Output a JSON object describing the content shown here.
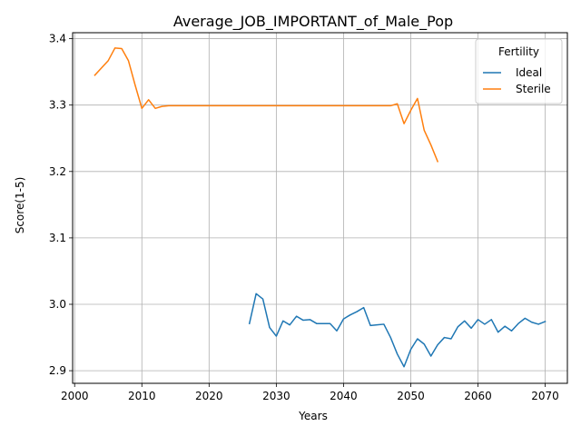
{
  "chart_data": {
    "type": "line",
    "title": "Average_JOB_IMPORTANT_of_Male_Pop",
    "xlabel": "Years",
    "ylabel": "Score(1-5)",
    "xlim": [
      1999.7,
      2073.3
    ],
    "ylim": [
      2.881,
      3.409
    ],
    "xticks": [
      2000,
      2010,
      2020,
      2030,
      2040,
      2050,
      2060,
      2070
    ],
    "yticks": [
      2.9,
      3.0,
      3.1,
      3.2,
      3.3,
      3.4
    ],
    "ytick_labels": [
      "2.9",
      "3.0",
      "3.1",
      "3.2",
      "3.3",
      "3.4"
    ],
    "grid": true,
    "legend": {
      "title": "Fertility",
      "placement": "top-right"
    },
    "series": [
      {
        "name": "Ideal",
        "color": "#1f77b4",
        "x": [
          2026,
          2027,
          2028,
          2029,
          2030,
          2031,
          2032,
          2033,
          2034,
          2035,
          2036,
          2037,
          2038,
          2039,
          2040,
          2041,
          2042,
          2043,
          2044,
          2045,
          2046,
          2047,
          2048,
          2049,
          2050,
          2051,
          2052,
          2053,
          2054,
          2055,
          2056,
          2057,
          2058,
          2059,
          2060,
          2061,
          2062,
          2063,
          2064,
          2065,
          2066,
          2067,
          2068,
          2069,
          2070
        ],
        "y": [
          2.971,
          3.016,
          3.008,
          2.965,
          2.952,
          2.975,
          2.969,
          2.982,
          2.976,
          2.977,
          2.971,
          2.971,
          2.971,
          2.96,
          2.978,
          2.984,
          2.989,
          2.995,
          2.968,
          2.969,
          2.97,
          2.95,
          2.925,
          2.906,
          2.932,
          2.948,
          2.94,
          2.922,
          2.939,
          2.95,
          2.948,
          2.966,
          2.975,
          2.964,
          2.977,
          2.97,
          2.977,
          2.958,
          2.967,
          2.96,
          2.971,
          2.979,
          2.973,
          2.97,
          2.974
        ]
      },
      {
        "name": "Sterile",
        "color": "#ff7f0e",
        "x": [
          2003,
          2004,
          2005,
          2006,
          2007,
          2008,
          2009,
          2010,
          2011,
          2012,
          2013,
          2014,
          2015,
          2020,
          2030,
          2040,
          2045,
          2047,
          2048,
          2049,
          2050,
          2051,
          2052,
          2053,
          2054
        ],
        "y": [
          3.345,
          3.356,
          3.367,
          3.386,
          3.385,
          3.367,
          3.33,
          3.295,
          3.308,
          3.295,
          3.298,
          3.299,
          3.299,
          3.299,
          3.299,
          3.299,
          3.299,
          3.299,
          3.302,
          3.272,
          3.292,
          3.31,
          3.262,
          3.24,
          3.215
        ]
      }
    ]
  }
}
